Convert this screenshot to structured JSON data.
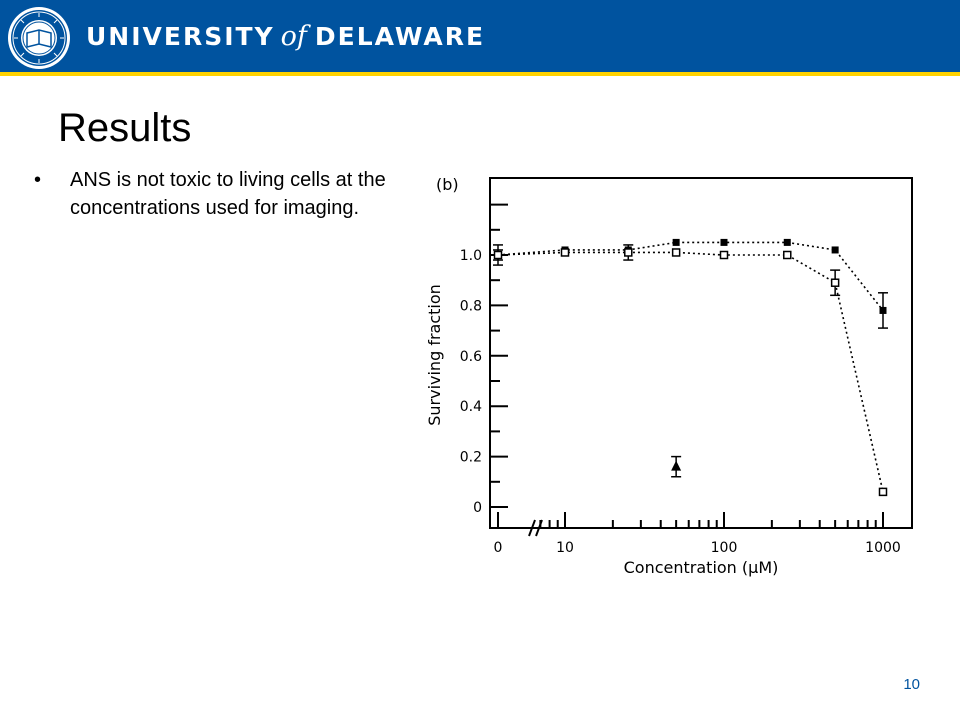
{
  "header": {
    "brand_part1": "UNIVERSITY",
    "brand_of": "of",
    "brand_part2": "DELAWARE",
    "colors": {
      "bar": "#00539f",
      "rule": "#ffd200"
    }
  },
  "slide": {
    "title": "Results",
    "bullets": [
      "ANS is not toxic to living cells at the concentrations used for imaging."
    ],
    "page_number": "10"
  },
  "chart_data": {
    "type": "scatter",
    "panel_label": "(b)",
    "xlabel": "Concentration (μM)",
    "ylabel": "Surviving fraction",
    "x_scale": "log (with 0 at origin, axis break between 0 and 10)",
    "x_ticks": [
      "0",
      "10",
      "100",
      "1000"
    ],
    "y_ticks": [
      "0",
      "0.2",
      "0.4",
      "0.6",
      "0.8",
      "1.0"
    ],
    "ylim": [
      0,
      1.0
    ],
    "grid": false,
    "series": [
      {
        "marker": "filled-square",
        "line": "dotted",
        "x": [
          0,
          10,
          25,
          50,
          100,
          250,
          500,
          1000
        ],
        "y": [
          1.0,
          1.02,
          1.02,
          1.05,
          1.05,
          1.05,
          1.02,
          0.78
        ],
        "err": [
          0.02,
          0.01,
          0.01,
          0.01,
          0.01,
          0.01,
          0.01,
          0.07
        ]
      },
      {
        "marker": "open-square",
        "line": "dotted",
        "x": [
          0,
          10,
          25,
          50,
          100,
          250,
          500,
          1000
        ],
        "y": [
          1.0,
          1.01,
          1.01,
          1.01,
          1.0,
          1.0,
          0.89,
          0.06
        ],
        "err": [
          0.04,
          0.01,
          0.03,
          0.01,
          0.01,
          0.01,
          0.05,
          0.01
        ]
      },
      {
        "marker": "filled-triangle",
        "line": "none",
        "x": [
          50
        ],
        "y": [
          0.16
        ],
        "err": [
          0.04
        ]
      }
    ]
  }
}
